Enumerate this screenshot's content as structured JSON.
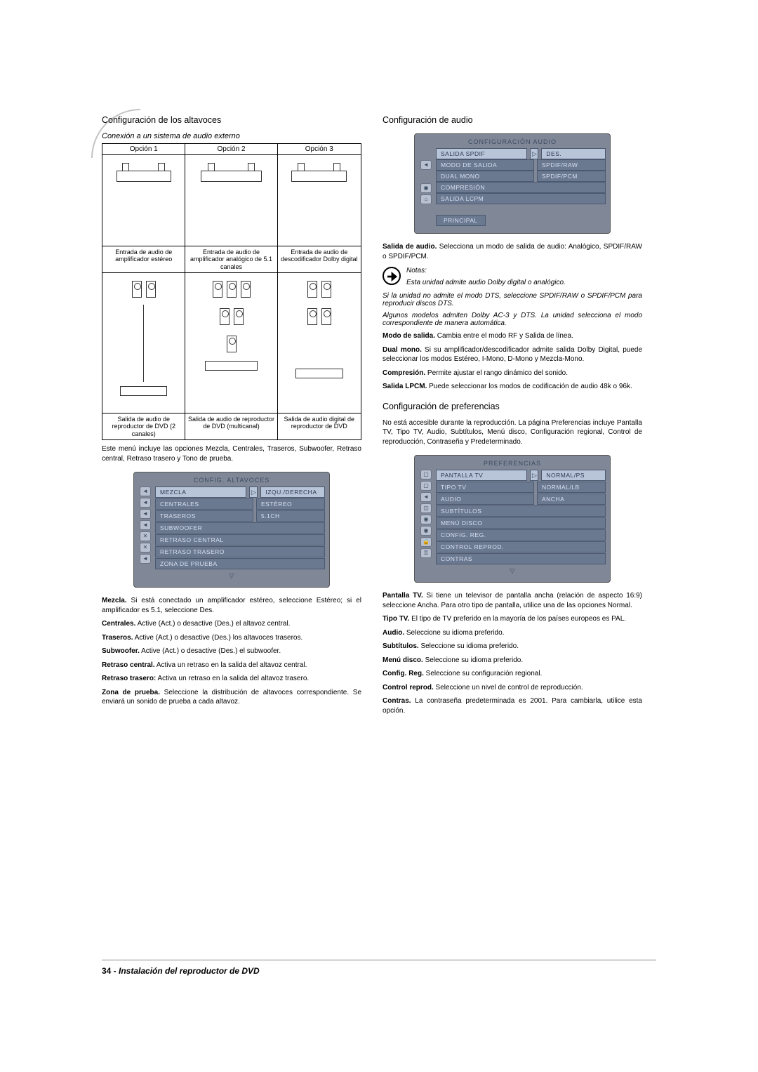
{
  "left": {
    "heading_speakers": "Configuración de los altavoces",
    "conn_subtitle": "Conexión a un sistema de audio externo",
    "options": [
      "Opción 1",
      "Opción 2",
      "Opción 3"
    ],
    "amp_captions": [
      "Entrada de audio de amplificador estéreo",
      "Entrada de audio de amplificador analógico de 5.1 canales",
      "Entrada de audio de descodificador Dolby digital"
    ],
    "dvd_captions": [
      "Salida de audio de reproductor de DVD (2 canales)",
      "Salida de audio de reproductor de DVD (multicanal)",
      "Salida de audio digital de reproductor de DVD"
    ],
    "menu_intro": "Este menú incluye las opciones Mezcla, Centrales, Traseros, Subwoofer, Retraso central, Retraso trasero y Tono de prueba.",
    "osd_speakers": {
      "title": "CONFIG. ALTAVOCES",
      "rows": [
        {
          "l": "MEZCLA",
          "r": "IZQU./DERECHA",
          "sel": true
        },
        {
          "l": "CENTRALES",
          "r": "ESTÉREO"
        },
        {
          "l": "TRASEROS",
          "r": "5.1CH"
        },
        {
          "l": "SUBWOOFER",
          "r": ""
        },
        {
          "l": "RETRASO CENTRAL",
          "r": ""
        },
        {
          "l": "RETRASO TRASERO",
          "r": ""
        },
        {
          "l": "ZONA DE PRUEBA",
          "r": ""
        }
      ]
    },
    "defs": [
      {
        "t": "Mezcla.",
        "d": " Si está conectado un amplificador estéreo, seleccione Estéreo; si el amplificador es 5.1, seleccione Des."
      },
      {
        "t": "Centrales.",
        "d": " Active (Act.) o desactive (Des.) el altavoz central."
      },
      {
        "t": "Traseros.",
        "d": " Active (Act.) o desactive (Des.) los altavoces traseros."
      },
      {
        "t": "Subwoofer.",
        "d": " Active (Act.) o desactive (Des.) el subwoofer."
      },
      {
        "t": "Retraso central.",
        "d": " Activa un retraso en la salida del altavoz central."
      },
      {
        "t": "Retraso trasero:",
        "d": " Activa un retraso en la salida del altavoz trasero."
      },
      {
        "t": "Zona de prueba.",
        "d": " Seleccione la distribución de altavoces correspondiente.  Se enviará un sonido de prueba a cada altavoz."
      }
    ]
  },
  "right": {
    "heading_audio": "Configuración de audio",
    "osd_audio": {
      "title": "CONFIGURACIÓN AUDIO",
      "rows": [
        {
          "l": "SALIDA SPDIF",
          "r": "DES.",
          "sel": true
        },
        {
          "l": "MODO DE SALIDA",
          "r": "SPDIF/RAW"
        },
        {
          "l": "DUAL MONO",
          "r": "SPDIF/PCM"
        },
        {
          "l": "COMPRESIÓN",
          "r": ""
        },
        {
          "l": "SALIDA LCPM",
          "r": ""
        }
      ],
      "principal": "PRINCIPAL"
    },
    "salida_audio": {
      "t": "Salida de audio.",
      "d": " Selecciona un modo de salida de audio: Analógico, SPDIF/RAW o SPDIF/PCM."
    },
    "notas_label": "Notas:",
    "nota1": "Esta unidad admite audio Dolby digital o analógico.",
    "nota2": "Si la unidad no admite el modo DTS, seleccione SPDIF/RAW o SPDIF/PCM para reproducir discos DTS.",
    "nota3": "Algunos modelos admiten Dolby AC-3 y DTS. La unidad selecciona el modo correspondiente de manera automática.",
    "modo_salida": {
      "t": "Modo de salida.",
      "d": " Cambia entre el modo RF y Salida de línea."
    },
    "dual_mono": {
      "t": "Dual mono.",
      "d": " Si su amplificador/descodificador admite salida Dolby Digital, puede seleccionar los modos Estéreo, I-Mono, D-Mono y Mezcla-Mono."
    },
    "compresion": {
      "t": "Compresión.",
      "d": " Permite ajustar el rango dinámico del sonido."
    },
    "salida_lpcm": {
      "t": "Salida LPCM.",
      "d": " Puede seleccionar los modos de codificación de audio 48k o 96k."
    },
    "heading_prefs": "Configuración de preferencias",
    "prefs_intro": "No está accesible durante la reproducción. La página Preferencias incluye Pantalla TV, Tipo TV, Audio, Subtítulos, Menú disco, Configuración regional, Control de reproducción, Contraseña y Predeterminado.",
    "osd_prefs": {
      "title": "PREFERENCIAS",
      "rows": [
        {
          "l": "PANTALLA TV",
          "r": "NORMAL/PS",
          "sel": true
        },
        {
          "l": "TIPO TV",
          "r": "NORMAL/LB"
        },
        {
          "l": "AUDIO",
          "r": "ANCHA"
        },
        {
          "l": "SUBTÍTULOS",
          "r": ""
        },
        {
          "l": "MENÚ DISCO",
          "r": ""
        },
        {
          "l": "CONFIG. REG.",
          "r": ""
        },
        {
          "l": "CONTROL REPROD.",
          "r": ""
        },
        {
          "l": "CONTRAS",
          "r": ""
        }
      ]
    },
    "defs2": [
      {
        "t": "Pantalla TV.",
        "d": " Si tiene un televisor de pantalla ancha (relación de aspecto 16:9) seleccione Ancha. Para otro tipo de pantalla, utilice una de las opciones Normal."
      },
      {
        "t": "Tipo TV.",
        "d": " El tipo de TV preferido en la mayoría de los países europeos es PAL."
      },
      {
        "t": "Audio.",
        "d": " Seleccione su idioma preferido."
      },
      {
        "t": "Subtítulos.",
        "d": " Seleccione su idioma preferido."
      },
      {
        "t": "Menú disco.",
        "d": " Seleccione su idioma preferido."
      },
      {
        "t": "Config. Reg.",
        "d": " Seleccione su configuración regional."
      },
      {
        "t": "Control reprod.",
        "d": " Seleccione un nivel de control de reproducción."
      },
      {
        "t": "Contras.",
        "d": " La contraseña predeterminada es 2001. Para cambiarla, utilice esta opción."
      }
    ]
  },
  "footer": {
    "page_num": "34 - ",
    "title": "Instalación del reproductor de DVD"
  }
}
